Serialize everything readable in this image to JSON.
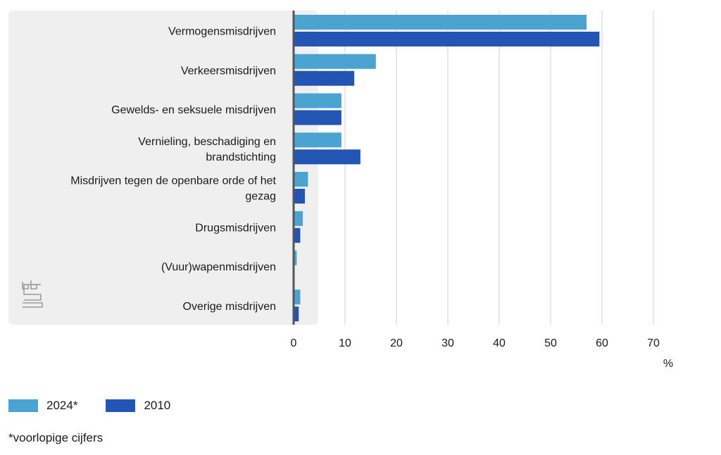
{
  "chart_data": {
    "type": "bar",
    "orientation": "horizontal",
    "categories": [
      [
        "Vermogensmisdrijven"
      ],
      [
        "Verkeersmisdrijven"
      ],
      [
        "Gewelds- en seksuele misdrijven"
      ],
      [
        "Vernieling, beschadiging en",
        "brandstichting"
      ],
      [
        "Misdrijven tegen de openbare orde of het",
        "gezag"
      ],
      [
        "Drugsmisdrijven"
      ],
      [
        "(Vuur)wapenmisdrijven"
      ],
      [
        "Overige misdrijven"
      ]
    ],
    "series": [
      {
        "name": "2024*",
        "color": "#4aa3d0",
        "values": [
          57.0,
          16.0,
          9.3,
          9.3,
          2.8,
          1.8,
          0.6,
          1.3
        ]
      },
      {
        "name": "2010",
        "color": "#2355b5",
        "values": [
          59.5,
          11.8,
          9.3,
          13.0,
          2.2,
          1.3,
          0.2,
          1.0
        ]
      }
    ],
    "xticks": [
      "0",
      "10",
      "20",
      "30",
      "40",
      "50",
      "60",
      "70"
    ],
    "xlim": [
      0,
      70
    ],
    "xunit": "%",
    "grid": true,
    "legend_position": "bottom-left"
  },
  "footnote": "*voorlopige cijfers",
  "logo": "cbs",
  "colors": {
    "panel": "#efefef",
    "gridline": "#d0d0d0",
    "axis": "#555555"
  }
}
